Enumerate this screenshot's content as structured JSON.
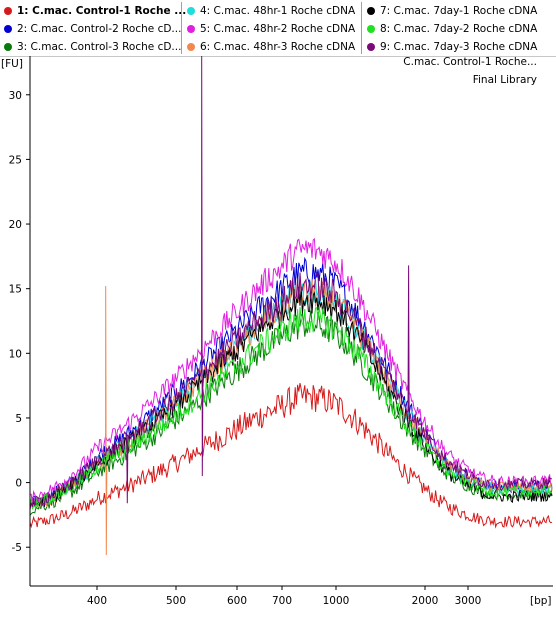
{
  "legend": {
    "items": [
      {
        "label": "1: C.mac. Control-1 Roche ...",
        "color": "#d61a1a",
        "selected": true
      },
      {
        "label": "2: C.mac. Control-2 Roche cD...",
        "color": "#0000d0"
      },
      {
        "label": "3: C.mac. Control-3 Roche cD...",
        "color": "#0a7a0a"
      },
      {
        "label": "4: C.mac. 48hr-1 Roche cDNA",
        "color": "#20dcdc"
      },
      {
        "label": "5: C.mac. 48hr-2 Roche cDNA",
        "color": "#e020e0"
      },
      {
        "label": "6: C.mac. 48hr-3 Roche cDNA",
        "color": "#f08850"
      },
      {
        "label": "7: C.mac. 7day-1 Roche cDNA",
        "color": "#000000"
      },
      {
        "label": "8: C.mac. 7day-2 Roche cDNA",
        "color": "#20e020"
      },
      {
        "label": "9: C.mac. 7day-3 Roche cDNA",
        "color": "#7a0a7a"
      }
    ]
  },
  "chart_data": {
    "type": "line",
    "y_unit": "[FU]",
    "x_unit": "[bp]",
    "sample_title": "C.mac. Control-1 Roche...",
    "subtitle": "Final Library",
    "ylim": [
      -8,
      33
    ],
    "y_ticks": [
      -5,
      0,
      5,
      10,
      15,
      20,
      25,
      30
    ],
    "x_ticks": [
      {
        "label": "400",
        "bp": 400
      },
      {
        "label": "500",
        "bp": 500
      },
      {
        "label": "600",
        "bp": 600
      },
      {
        "label": "700",
        "bp": 700
      },
      {
        "label": "1000",
        "bp": 1000
      },
      {
        "label": "2000",
        "bp": 2000
      },
      {
        "label": "3000",
        "bp": 3000
      }
    ],
    "grid": false,
    "series": [
      {
        "name": "1: C.mac. Control-1 Roche ...",
        "color": "#d61a1a",
        "baseline_left": -3.6,
        "peak": 6.6,
        "baseline_right": -3.0
      },
      {
        "name": "2: C.mac. Control-2 Roche cD...",
        "color": "#0000d0",
        "baseline_left": -2.3,
        "peak": 16.2,
        "baseline_right": -0.2
      },
      {
        "name": "3: C.mac. Control-3 Roche cD...",
        "color": "#0a7a0a",
        "baseline_left": -2.6,
        "peak": 12.2,
        "baseline_right": -0.8
      },
      {
        "name": "4: C.mac. 48hr-1 Roche cDNA",
        "color": "#20dcdc",
        "baseline_left": -2.4,
        "peak": 14.8,
        "baseline_right": -0.4
      },
      {
        "name": "5: C.mac. 48hr-2 Roche cDNA",
        "color": "#e020e0",
        "baseline_left": -2.0,
        "peak": 18.0,
        "baseline_right": 0.2
      },
      {
        "name": "6: C.mac. 48hr-3 Roche cDNA",
        "color": "#f08850",
        "baseline_left": -2.5,
        "peak": 14.6,
        "baseline_right": -0.2
      },
      {
        "name": "7: C.mac. 7day-1 Roche cDNA",
        "color": "#000000",
        "baseline_left": -2.4,
        "peak": 14.2,
        "baseline_right": -1.0
      },
      {
        "name": "8: C.mac. 7day-2 Roche cDNA",
        "color": "#20e020",
        "baseline_left": -2.2,
        "peak": 12.6,
        "baseline_right": -0.6
      },
      {
        "name": "9: C.mac. 7day-3 Roche cDNA",
        "color": "#7a0a7a",
        "baseline_left": -2.3,
        "peak": 15.2,
        "baseline_right": 0.0
      }
    ],
    "spikes": [
      {
        "series": "6: C.mac. 48hr-3 Roche cDNA",
        "bp": 410,
        "value": 15.2,
        "low": -5.6
      },
      {
        "series": "9: C.mac. 7day-3 Roche cDNA",
        "bp": 435,
        "value": 3.2,
        "low": -1.6
      },
      {
        "series": "9: C.mac. 7day-3 Roche cDNA",
        "bp": 540,
        "value": 33,
        "low": 0.5
      },
      {
        "series": "9: C.mac. 7day-3 Roche cDNA",
        "bp": 1760,
        "value": 16.8,
        "low": 4.5
      }
    ]
  }
}
